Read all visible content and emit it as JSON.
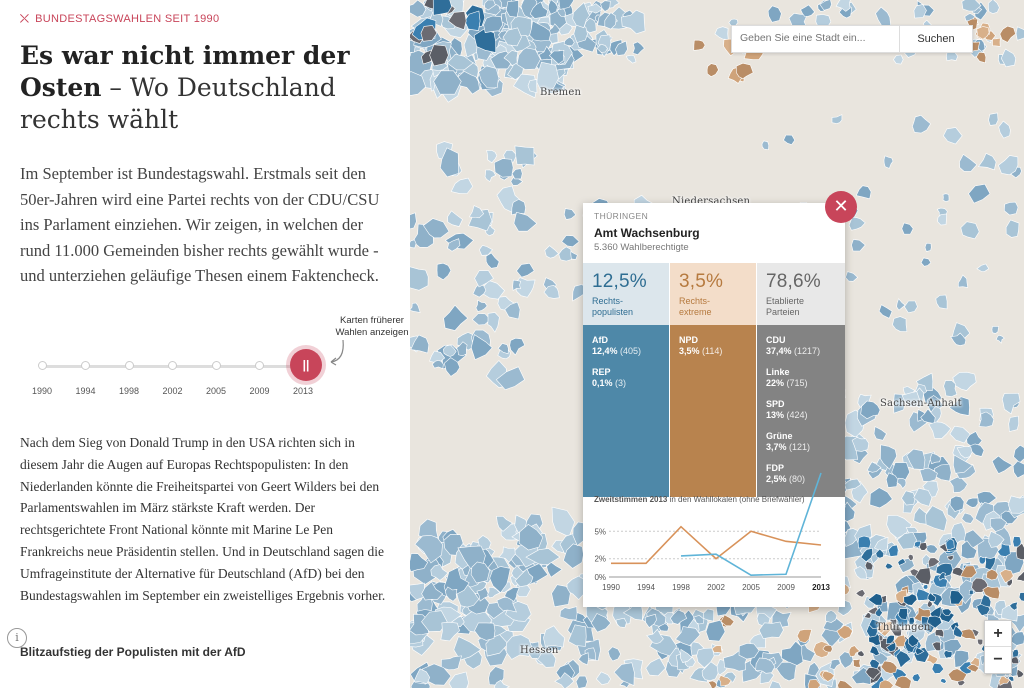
{
  "kicker": "BUNDESTAGSWAHLEN SEIT 1990",
  "title": {
    "bold": "Es war nicht immer der Osten",
    "light": " – Wo Deutschland rechts wählt"
  },
  "intro": "Im September ist Bundestagswahl. Erstmals seit den 50er-Jahren wird eine Partei rechts von der CDU/CSU ins Parlament einziehen. Wir zeigen, in welchen der rund 11.000 Gemeinden bisher rechts gewählt wurde - und unterziehen geläufige Thesen einem Faktencheck.",
  "timeline": {
    "hint": "Karten früherer Wahlen anzeigen",
    "years": [
      "1990",
      "1994",
      "1998",
      "2002",
      "2005",
      "2009",
      "2013"
    ],
    "play_glyph": "||"
  },
  "body": "Nach dem Sieg von Donald Trump in den USA richten sich in diesem Jahr die Augen auf Europas Rechtspopulisten: In den Niederlanden könnte die Freiheitspartei von Geert Wilders bei den Parlamentswahlen im März stärkste Kraft werden. Der rechtsgerichtete Front National könnte mit Marine Le Pen Frankreichs neue Präsidentin stellen. Und in Deutschland sagen die Umfrageinstitute der Alternative für Deutschland (AfD) bei den Bundestagswahlen im September ein zweistelliges Ergebnis vorher.",
  "info_glyph": "i",
  "subhead": "Blitzaufstieg der Populisten mit der AfD",
  "search": {
    "placeholder": "Geben Sie eine Stadt ein...",
    "button": "Suchen"
  },
  "zoom": {
    "in": "+",
    "out": "−"
  },
  "cities": [
    "Bremen",
    "Niedersachsen",
    "Sachsen-Anhalt",
    "Thüringen",
    "Hessen"
  ],
  "popup": {
    "state": "THÜRINGEN",
    "name": "Amt Wachsenburg",
    "voters": "5.360 Wahlberechtigte",
    "close_glyph": "✕",
    "columns": [
      {
        "pct": "12,5%",
        "caption": [
          "Rechts-",
          "populisten"
        ],
        "head_bg": "#dce6ec",
        "bar_bg": "#4e88a8",
        "text": "#2e6d92",
        "parties": [
          {
            "name": "AfD",
            "value": "12,4%",
            "count": "(405)"
          },
          {
            "name": "REP",
            "value": "0,1%",
            "count": "(3)"
          }
        ]
      },
      {
        "pct": "3,5%",
        "caption": [
          "Rechts-",
          "extreme"
        ],
        "head_bg": "#f3ddc9",
        "bar_bg": "#b8834e",
        "text": "#b67a3f",
        "parties": [
          {
            "name": "NPD",
            "value": "3,5%",
            "count": "(114)"
          }
        ]
      },
      {
        "pct": "78,6%",
        "caption": [
          "Etablierte",
          "Parteien"
        ],
        "head_bg": "#e8e8e8",
        "bar_bg": "#838383",
        "text": "#666666",
        "parties": [
          {
            "name": "CDU",
            "value": "37,4%",
            "count": "(1217)"
          },
          {
            "name": "Linke",
            "value": "22%",
            "count": "(715)"
          },
          {
            "name": "SPD",
            "value": "13%",
            "count": "(424)"
          },
          {
            "name": "Grüne",
            "value": "3,7%",
            "count": "(121)"
          },
          {
            "name": "FDP",
            "value": "2,5%",
            "count": "(80)"
          }
        ]
      }
    ],
    "chart_title_bold": "Zweitstimmen 2013",
    "chart_title_rest": " in den Wahllokalen (ohne Briefwähler)"
  },
  "chart_data": {
    "type": "line",
    "x": [
      "1990",
      "1994",
      "1998",
      "2002",
      "2005",
      "2009",
      "2013"
    ],
    "yticks": [
      "0%",
      "2%",
      "5%"
    ],
    "ylim": [
      0,
      7
    ],
    "series": [
      {
        "color": "#d8925a",
        "values": [
          1.5,
          1.5,
          5.5,
          2.0,
          5.0,
          3.9,
          3.5
        ]
      },
      {
        "color": "#5fb4d8",
        "values": [
          null,
          null,
          2.3,
          2.5,
          0.2,
          0.3,
          12.4
        ]
      }
    ]
  }
}
